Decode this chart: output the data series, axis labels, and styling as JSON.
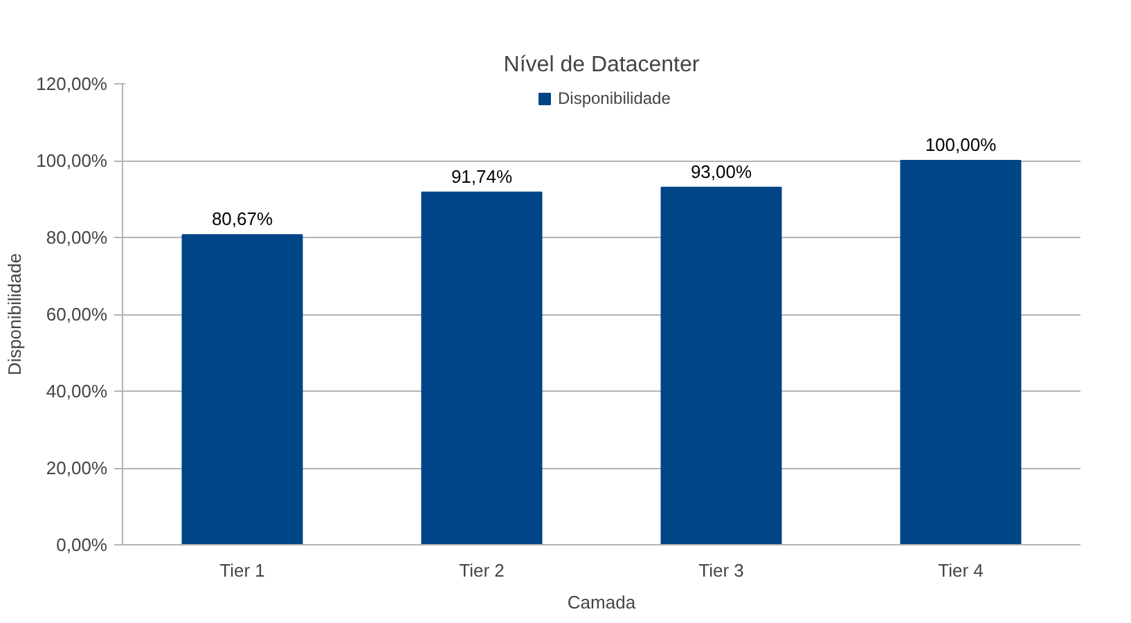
{
  "chart_data": {
    "type": "bar",
    "title": "Nível de Datacenter",
    "xlabel": "Camada",
    "ylabel": "Disponibilidade",
    "categories": [
      "Tier 1",
      "Tier 2",
      "Tier 3",
      "Tier 4"
    ],
    "series": [
      {
        "name": "Disponibilidade",
        "color": "#004586",
        "values": [
          80.67,
          91.74,
          93.0,
          100.0
        ],
        "value_labels": [
          "80,67%",
          "91,74%",
          "93,00%",
          "100,00%"
        ]
      }
    ],
    "ylim": [
      0,
      120
    ],
    "yticks": [
      {
        "value": 0,
        "label": "0,00%"
      },
      {
        "value": 20,
        "label": "20,00%"
      },
      {
        "value": 40,
        "label": "40,00%"
      },
      {
        "value": 60,
        "label": "60,00%"
      },
      {
        "value": 80,
        "label": "80,00%"
      },
      {
        "value": 100,
        "label": "100,00%"
      },
      {
        "value": 120,
        "label": "120,00%"
      }
    ],
    "grid": "y",
    "legend": "top"
  }
}
